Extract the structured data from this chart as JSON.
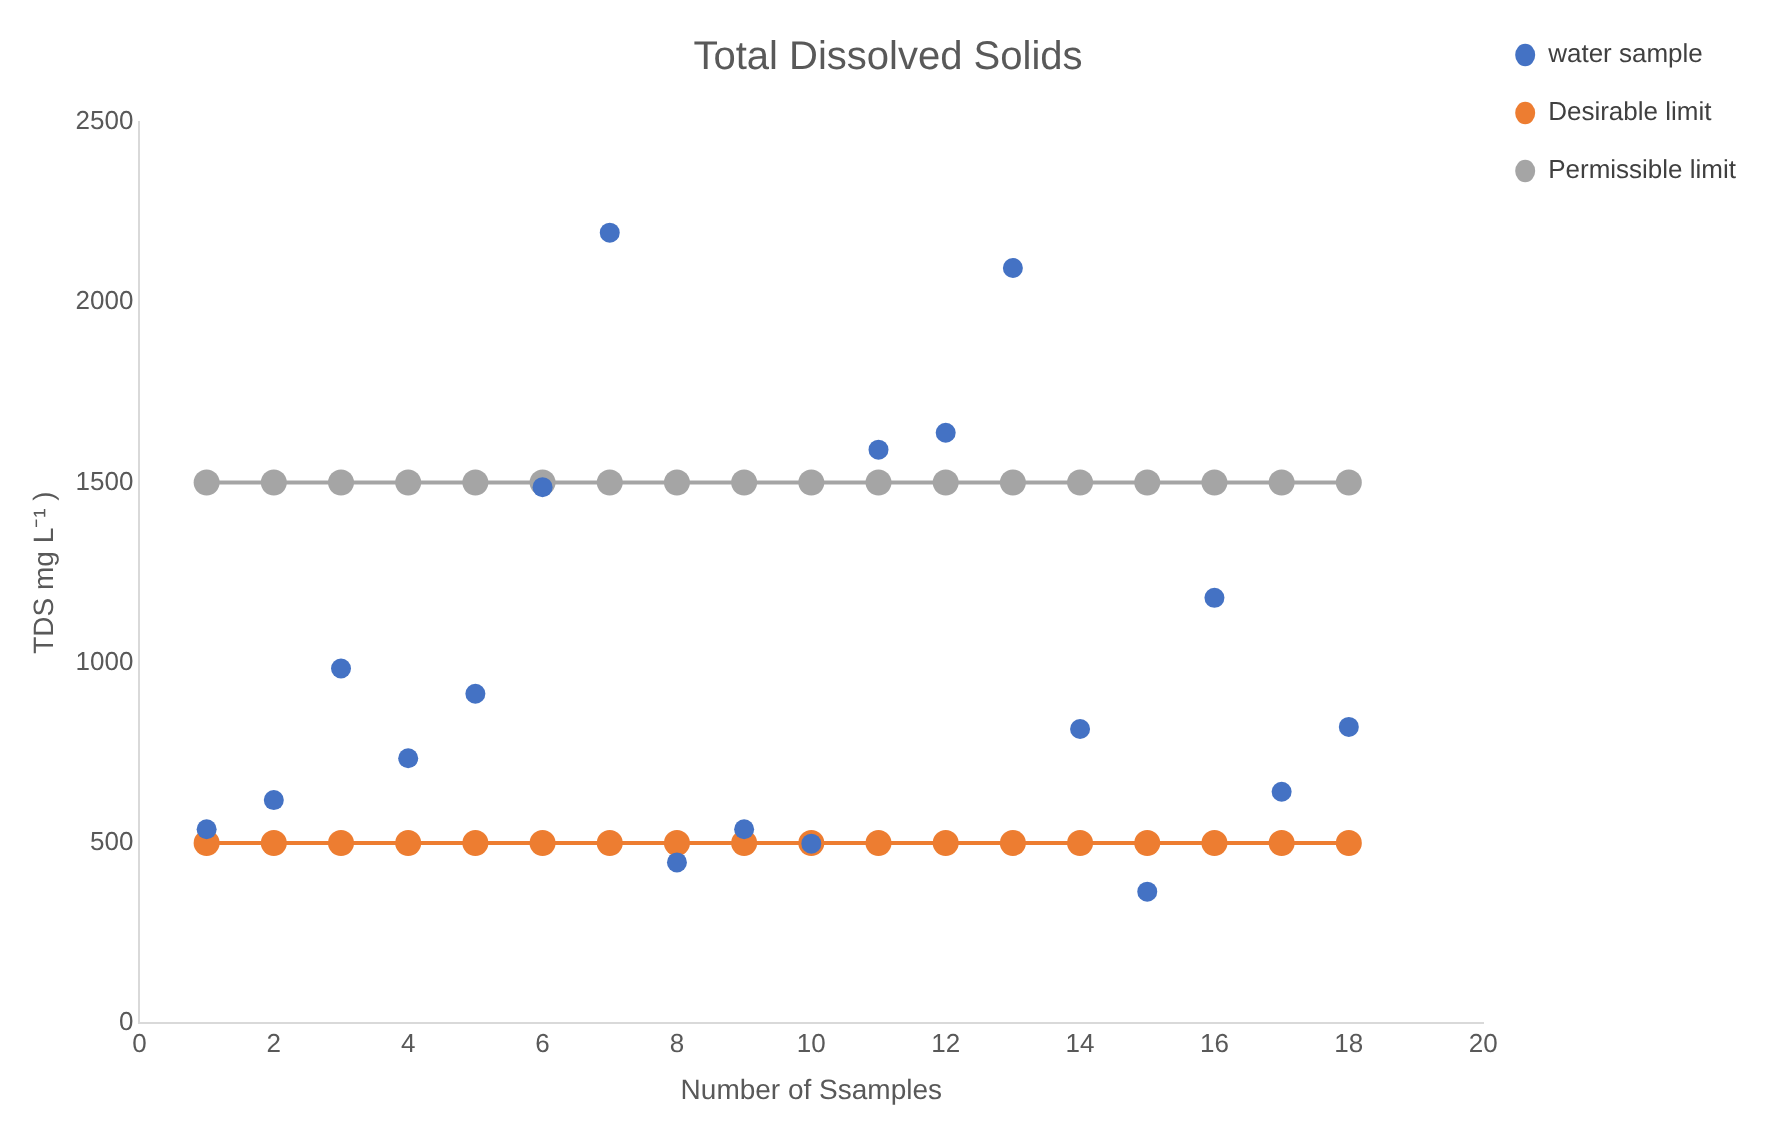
{
  "chart_data": {
    "type": "scatter",
    "title": "Total Dissolved Solids",
    "xlabel": "Number of Ssamples",
    "ylabel": "TDS mg L⁻¹ )",
    "x": [
      1,
      2,
      3,
      4,
      5,
      6,
      7,
      8,
      9,
      10,
      11,
      12,
      13,
      14,
      15,
      16,
      17,
      18
    ],
    "series": [
      {
        "name": "water sample",
        "type": "scatter",
        "color": "#4472c4",
        "values": [
          538,
          619,
          984,
          735,
          914,
          1487,
          2193,
          446,
          538,
          498,
          1591,
          1638,
          2095,
          816,
          365,
          1180,
          642,
          822
        ]
      },
      {
        "name": "Desirable limit",
        "type": "line",
        "color": "#ed7d31",
        "values": [
          500,
          500,
          500,
          500,
          500,
          500,
          500,
          500,
          500,
          500,
          500,
          500,
          500,
          500,
          500,
          500,
          500,
          500
        ]
      },
      {
        "name": "Permissible limit",
        "type": "line",
        "color": "#a5a5a5",
        "values": [
          1500,
          1500,
          1500,
          1500,
          1500,
          1500,
          1500,
          1500,
          1500,
          1500,
          1500,
          1500,
          1500,
          1500,
          1500,
          1500,
          1500,
          1500
        ]
      }
    ],
    "xlim": [
      0,
      20
    ],
    "xticks": [
      0,
      2,
      4,
      6,
      8,
      10,
      12,
      14,
      16,
      18,
      20
    ],
    "ylim": [
      0,
      2500
    ],
    "yticks": [
      0,
      500,
      1000,
      1500,
      2000,
      2500
    ],
    "grid": false,
    "legend": "top right",
    "marker": "circle",
    "line_style": "solid"
  }
}
